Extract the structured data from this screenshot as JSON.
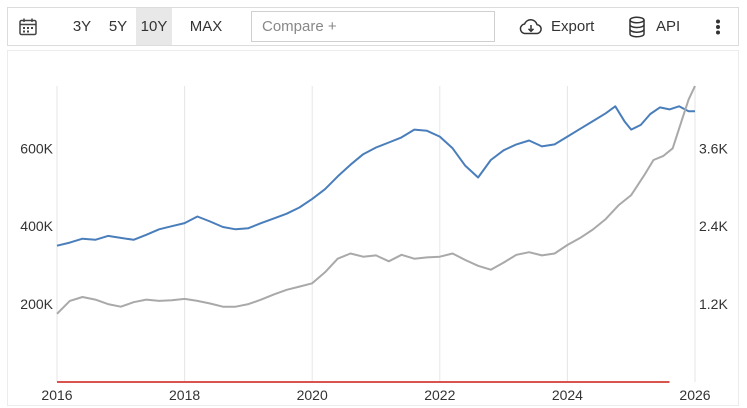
{
  "toolbar": {
    "calendar_icon": "calendar-icon",
    "ranges": [
      {
        "label": "3Y",
        "active": false
      },
      {
        "label": "5Y",
        "active": false
      },
      {
        "label": "10Y",
        "active": true
      },
      {
        "label": "MAX",
        "active": false
      }
    ],
    "compare_placeholder": "Compare +",
    "export_label": "Export",
    "export_icon": "cloud-download-icon",
    "api_label": "API",
    "api_icon": "database-icon",
    "more_icon": "vertical-dots-icon"
  },
  "chart_data": {
    "type": "line",
    "x_ticks": [
      "2016",
      "2018",
      "2020",
      "2022",
      "2024",
      "2026"
    ],
    "xlim": [
      2016.0,
      2026.0
    ],
    "left_axis": {
      "ticks": [
        "200K",
        "400K",
        "600K"
      ],
      "ylim": [
        0,
        760000
      ]
    },
    "right_axis": {
      "ticks": [
        "1.2K",
        "2.4K",
        "3.6K"
      ],
      "ylim": [
        0,
        4560
      ]
    },
    "grid": "vertical",
    "series": [
      {
        "axis": "left",
        "color": "#4a7ebb",
        "x": [
          2016.0,
          2016.2,
          2016.4,
          2016.6,
          2016.8,
          2017.0,
          2017.2,
          2017.4,
          2017.6,
          2017.8,
          2018.0,
          2018.2,
          2018.4,
          2018.6,
          2018.8,
          2019.0,
          2019.2,
          2019.4,
          2019.6,
          2019.8,
          2020.0,
          2020.2,
          2020.4,
          2020.6,
          2020.8,
          2021.0,
          2021.2,
          2021.4,
          2021.6,
          2021.8,
          2022.0,
          2022.2,
          2022.4,
          2022.6,
          2022.8,
          2023.0,
          2023.2,
          2023.4,
          2023.6,
          2023.8,
          2024.0,
          2024.2,
          2024.4,
          2024.6,
          2024.75,
          2024.9,
          2025.0,
          2025.15,
          2025.3,
          2025.45,
          2025.6,
          2025.75,
          2025.9,
          2026.0
        ],
        "values": [
          350000,
          358000,
          368000,
          365000,
          375000,
          370000,
          365000,
          378000,
          392000,
          400000,
          408000,
          425000,
          412000,
          398000,
          392000,
          395000,
          408000,
          420000,
          432000,
          448000,
          470000,
          495000,
          528000,
          558000,
          585000,
          602000,
          615000,
          628000,
          648000,
          645000,
          630000,
          600000,
          555000,
          525000,
          570000,
          595000,
          610000,
          620000,
          605000,
          610000,
          630000,
          650000,
          670000,
          690000,
          708000,
          668000,
          648000,
          660000,
          688000,
          705000,
          700000,
          708000,
          695000,
          695000
        ]
      },
      {
        "axis": "right",
        "color": "#a9a9a9",
        "x": [
          2016.0,
          2016.2,
          2016.4,
          2016.6,
          2016.8,
          2017.0,
          2017.2,
          2017.4,
          2017.6,
          2017.8,
          2018.0,
          2018.2,
          2018.4,
          2018.6,
          2018.8,
          2019.0,
          2019.2,
          2019.4,
          2019.6,
          2019.8,
          2020.0,
          2020.2,
          2020.4,
          2020.6,
          2020.8,
          2021.0,
          2021.2,
          2021.4,
          2021.6,
          2021.8,
          2022.0,
          2022.2,
          2022.4,
          2022.6,
          2022.8,
          2023.0,
          2023.2,
          2023.4,
          2023.6,
          2023.8,
          2024.0,
          2024.2,
          2024.4,
          2024.6,
          2024.8,
          2025.0,
          2025.2,
          2025.35,
          2025.5,
          2025.65,
          2025.8,
          2025.9,
          2026.0
        ],
        "values": [
          1050,
          1250,
          1310,
          1270,
          1200,
          1160,
          1230,
          1270,
          1250,
          1260,
          1280,
          1250,
          1210,
          1160,
          1160,
          1200,
          1270,
          1350,
          1420,
          1470,
          1520,
          1690,
          1900,
          1980,
          1930,
          1950,
          1860,
          1960,
          1900,
          1920,
          1930,
          1980,
          1880,
          1790,
          1730,
          1840,
          1960,
          2000,
          1950,
          1980,
          2110,
          2220,
          2350,
          2510,
          2720,
          2880,
          3180,
          3420,
          3480,
          3600,
          4050,
          4350,
          4560
        ]
      },
      {
        "axis": "left",
        "color": "#d9534f",
        "x": [
          2016.0,
          2025.6
        ],
        "values": [
          0,
          0
        ]
      }
    ]
  }
}
